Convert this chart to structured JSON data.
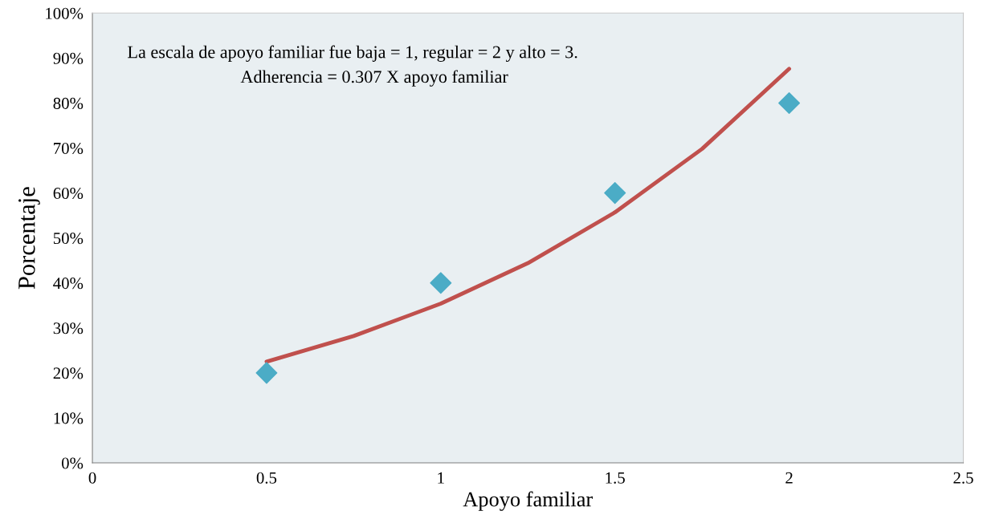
{
  "chart_data": {
    "type": "scatter",
    "xlabel": "Apoyo familiar",
    "ylabel": "Porcentaje",
    "annotations": [
      "La escala de apoyo familiar fue baja = 1, regular = 2 y alto = 3.",
      "Adherencia = 0.307 X apoyo familiar"
    ],
    "x": [
      0.5,
      1,
      1.5,
      2
    ],
    "series": [
      {
        "color": "#4bacc6",
        "marker": "diamond",
        "values": [
          20,
          40,
          60,
          80
        ]
      },
      {
        "type": "line",
        "color": "#c0504d",
        "x": [
          0.5,
          0.75,
          1,
          1.25,
          1.5,
          1.75,
          2
        ],
        "values": [
          22.5,
          28.2,
          35.4,
          44.4,
          55.7,
          69.8,
          87.6
        ]
      }
    ],
    "xlim": [
      0,
      2.5
    ],
    "xticks": [
      0,
      0.5,
      1,
      1.5,
      2,
      2.5
    ],
    "ylim": [
      0,
      100
    ],
    "yticks": [
      {
        "value": 0,
        "label": "0%"
      },
      {
        "value": 10,
        "label": "10%"
      },
      {
        "value": 20,
        "label": "20%"
      },
      {
        "value": 30,
        "label": "30%"
      },
      {
        "value": 40,
        "label": "40%"
      },
      {
        "value": 50,
        "label": "50%"
      },
      {
        "value": 60,
        "label": "60%"
      },
      {
        "value": 70,
        "label": "70%"
      },
      {
        "value": 80,
        "label": "80%"
      },
      {
        "value": 90,
        "label": "90%"
      },
      {
        "value": 100,
        "label": "100%"
      }
    ],
    "grid": false,
    "legend": false
  }
}
